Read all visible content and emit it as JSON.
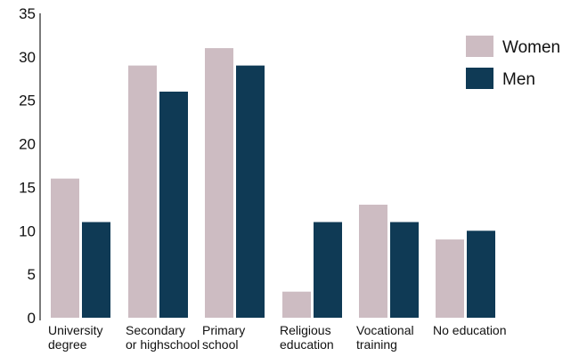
{
  "chart_data": {
    "type": "bar",
    "categories": [
      [
        "University",
        "degree"
      ],
      [
        "Secondary",
        "or highschool"
      ],
      [
        "Primary",
        "school"
      ],
      [
        "Religious",
        "education"
      ],
      [
        "Vocational",
        "training"
      ],
      [
        "No education"
      ]
    ],
    "series": [
      {
        "name": "Women",
        "color": "#cdbcc2",
        "values": [
          16,
          29,
          31,
          3,
          13,
          9
        ]
      },
      {
        "name": "Men",
        "color": "#0f3a55",
        "values": [
          11,
          26,
          29,
          11,
          11,
          10
        ]
      }
    ],
    "ylim": [
      0,
      35
    ],
    "yticks": [
      "0",
      "5",
      "10",
      "15",
      "20",
      "25",
      "30",
      "35"
    ],
    "grid": false,
    "legend_position": "top-right"
  }
}
